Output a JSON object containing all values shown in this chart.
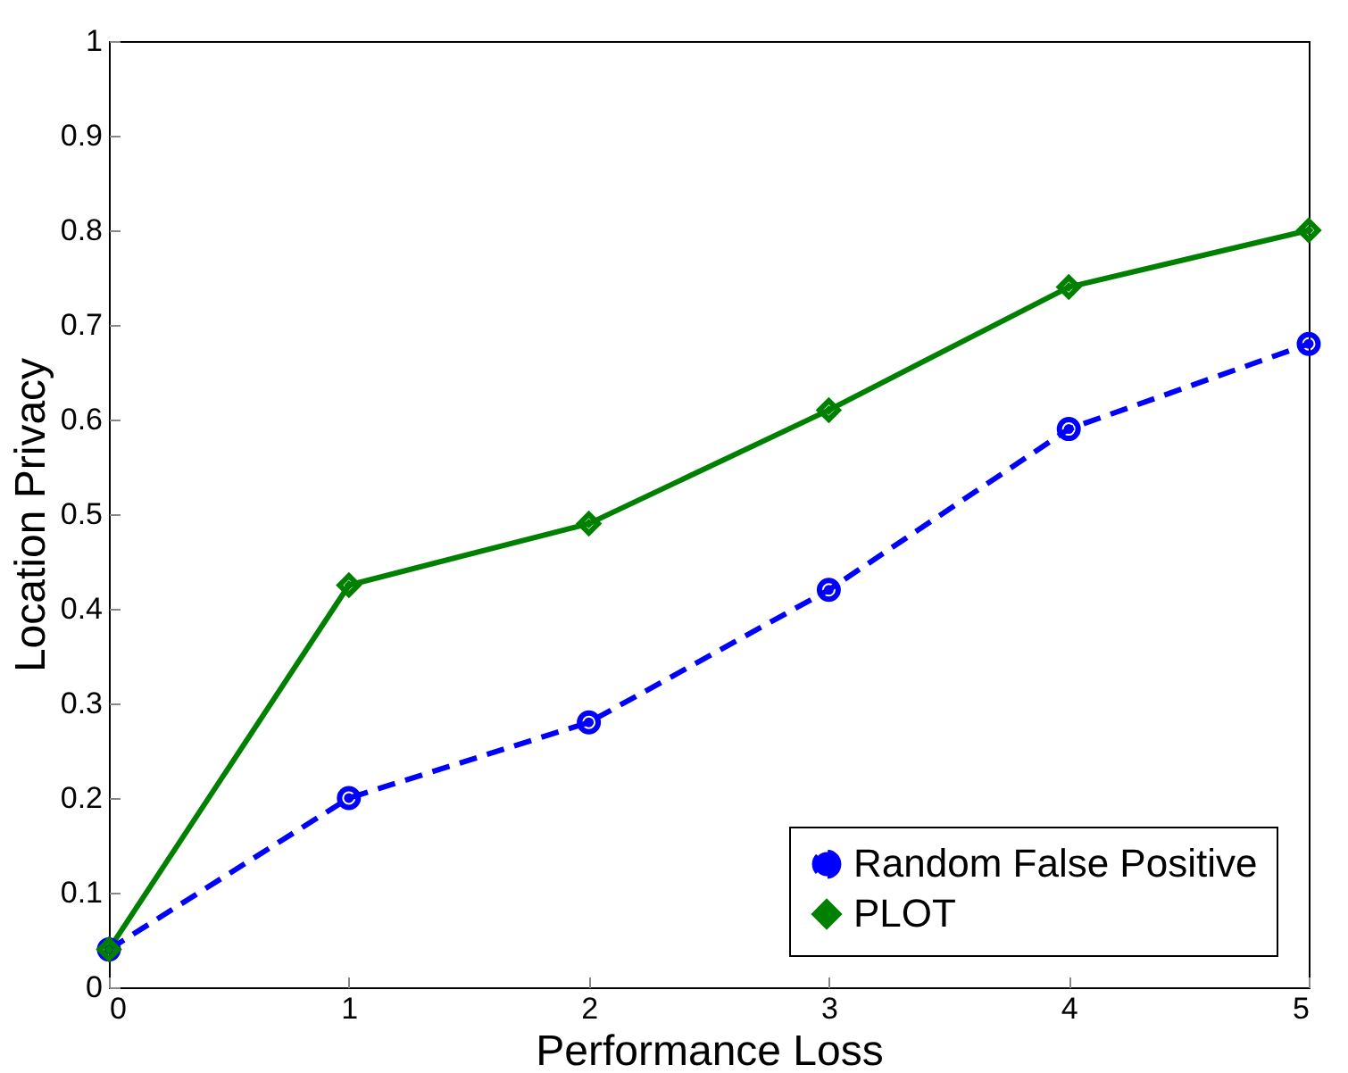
{
  "chart_data": {
    "type": "line",
    "xlabel": "Performance Loss",
    "ylabel": "Location Privacy",
    "x": [
      0,
      1,
      2,
      3,
      4,
      5
    ],
    "xlim": [
      0,
      5
    ],
    "xticks": [
      0,
      1,
      2,
      3,
      4,
      5
    ],
    "ylim": [
      0,
      1
    ],
    "yticks": [
      0,
      0.1,
      0.2,
      0.3,
      0.4,
      0.5,
      0.6,
      0.7,
      0.8,
      0.9,
      1
    ],
    "grid": false,
    "legend": "bottom right",
    "series": [
      {
        "name": "Random False Positive",
        "color": "#0000ff",
        "marker": "circle",
        "line_style": "dashed",
        "values": [
          0.04,
          0.2,
          0.28,
          0.42,
          0.59,
          0.68
        ]
      },
      {
        "name": "PLOT",
        "color": "#008000",
        "marker": "diamond",
        "line_style": "solid",
        "values": [
          0.04,
          0.425,
          0.49,
          0.61,
          0.74,
          0.8
        ]
      }
    ]
  }
}
